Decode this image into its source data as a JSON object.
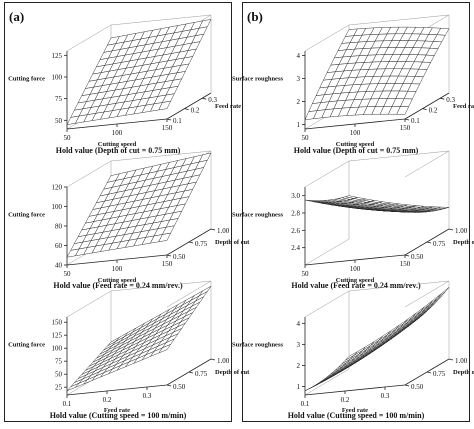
{
  "panels": [
    {
      "label": "(a)",
      "plot_ids": [
        "a1",
        "a2",
        "a3"
      ]
    },
    {
      "label": "(b)",
      "plot_ids": [
        "b1",
        "b2",
        "b3"
      ]
    }
  ],
  "chart_data": [
    {
      "id": "a1",
      "type": "surface",
      "zlabel": "Cutting force",
      "xlabel": "Cutting speed",
      "ylabel": "Feed rate",
      "xticks": [
        50,
        100,
        150
      ],
      "yticks": [
        0.1,
        0.2,
        0.3
      ],
      "zticks": [
        50,
        75,
        100,
        125
      ],
      "xlim": [
        50,
        150
      ],
      "ylim": [
        0.1,
        0.35
      ],
      "zlim": [
        40,
        130
      ],
      "surface": {
        "x_range": [
          50,
          150
        ],
        "y_range": [
          0.1,
          0.35
        ],
        "z_corners": {
          "x_min_y_min": 45,
          "x_max_y_min": 52,
          "x_min_y_max": 115,
          "x_max_y_max": 125
        },
        "curvature": 0
      },
      "grid": "12x12 mesh",
      "hold_value": "Hold value (Depth of cut = 0.75 mm)"
    },
    {
      "id": "a2",
      "type": "surface",
      "zlabel": "Cutting force",
      "xlabel": "Cutting speed",
      "ylabel": "Depth of cut",
      "xticks": [
        50,
        100,
        150
      ],
      "yticks": [
        0.5,
        0.75,
        1.0
      ],
      "yticklabels": [
        "0.50",
        "0.75",
        "1.00"
      ],
      "zticks": [
        40,
        60,
        80,
        100,
        120
      ],
      "xlim": [
        50,
        150
      ],
      "ylim": [
        0.5,
        1.0
      ],
      "zlim": [
        40,
        120
      ],
      "surface": {
        "x_range": [
          50,
          150
        ],
        "y_range": [
          0.5,
          1.0
        ],
        "z_corners": {
          "x_min_y_min": 48,
          "x_max_y_min": 55,
          "x_min_y_max": 105,
          "x_max_y_max": 118
        },
        "curvature": 0
      },
      "grid": "12x12 mesh",
      "hold_value": "Hold value (Feed rate = 0.24 mm/rev.)"
    },
    {
      "id": "a3",
      "type": "surface",
      "zlabel": "Cutting force",
      "xlabel": "Feed rate",
      "ylabel": "Depth of cut",
      "xticks": [
        0.1,
        0.2,
        0.3
      ],
      "yticks": [
        0.5,
        0.75,
        1.0
      ],
      "yticklabels": [
        "0.50",
        "0.75",
        "1.00"
      ],
      "zticks": [
        25,
        50,
        75,
        100,
        125,
        150
      ],
      "xlim": [
        0.1,
        0.35
      ],
      "ylim": [
        0.5,
        1.0
      ],
      "zlim": [
        10,
        160
      ],
      "surface": {
        "x_range": [
          0.1,
          0.35
        ],
        "y_range": [
          0.5,
          1.0
        ],
        "z_corners": {
          "x_min_y_min": 18,
          "x_max_y_min": 78,
          "x_min_y_max": 62,
          "x_max_y_max": 150
        },
        "curvature": 0
      },
      "grid": "12x12 mesh",
      "hold_value": "Hold value (Cutting speed = 100 m/min)"
    },
    {
      "id": "b1",
      "type": "surface",
      "zlabel": "Surface roughness",
      "xlabel": "Cutting speed",
      "ylabel": "Feed rate",
      "xticks": [
        50,
        100,
        150
      ],
      "yticks": [
        0.1,
        0.2,
        0.3
      ],
      "zticks": [
        1,
        2,
        3,
        4
      ],
      "xlim": [
        50,
        150
      ],
      "ylim": [
        0.1,
        0.35
      ],
      "zlim": [
        0.8,
        4.2
      ],
      "surface": {
        "x_range": [
          50,
          150
        ],
        "y_range": [
          0.1,
          0.35
        ],
        "z_corners": {
          "x_min_y_min": 1.2,
          "x_max_y_min": 1.0,
          "x_min_y_max": 4.0,
          "x_max_y_max": 3.6
        },
        "curvature": 0.3
      },
      "grid": "12x12 mesh",
      "hold_value": "Hold value (Depth of cut = 0.75 mm)"
    },
    {
      "id": "b2",
      "type": "surface",
      "zlabel": "Surface roughness",
      "xlabel": "Cutting speed",
      "ylabel": "Depth of cut",
      "xticks": [
        50,
        100,
        150
      ],
      "yticks": [
        0.5,
        0.75,
        1.0
      ],
      "yticklabels": [
        "0.50",
        "0.75",
        "1.00"
      ],
      "zticks": [
        2.4,
        2.6,
        2.8,
        3.0
      ],
      "zticklabels": [
        "2.4",
        "2.6",
        "2.8",
        "3.0"
      ],
      "xlim": [
        50,
        150
      ],
      "ylim": [
        0.5,
        1.0
      ],
      "zlim": [
        2.2,
        3.1
      ],
      "surface": {
        "x_range": [
          50,
          150
        ],
        "y_range": [
          0.5,
          1.0
        ],
        "z_corners": {
          "x_min_y_min": 2.95,
          "x_max_y_min": 2.7,
          "x_min_y_max": 2.7,
          "x_max_y_max": 2.45
        },
        "curvature": -0.35
      },
      "grid": "12x12 mesh",
      "hold_value": "Hold value (Feed rate = 0.24 mm/rev.)"
    },
    {
      "id": "b3",
      "type": "surface",
      "zlabel": "Surface roughness",
      "xlabel": "Feed rate",
      "ylabel": "Depth of cut",
      "xticks": [
        0.1,
        0.2,
        0.3
      ],
      "yticks": [
        0.5,
        0.75,
        1.0
      ],
      "yticklabels": [
        "0.50",
        "0.75",
        "1.00"
      ],
      "zticks": [
        1,
        2,
        3,
        4
      ],
      "xlim": [
        0.1,
        0.35
      ],
      "ylim": [
        0.5,
        1.0
      ],
      "zlim": [
        0.6,
        4.3
      ],
      "surface": {
        "x_range": [
          0.1,
          0.35
        ],
        "y_range": [
          0.5,
          1.0
        ],
        "z_corners": {
          "x_min_y_min": 0.8,
          "x_max_y_min": 3.3,
          "x_min_y_max": 1.2,
          "x_max_y_max": 4.0
        },
        "curvature": -0.5
      },
      "grid": "12x12 mesh",
      "hold_value": "Hold value (Cutting speed = 100 m/min)"
    }
  ]
}
